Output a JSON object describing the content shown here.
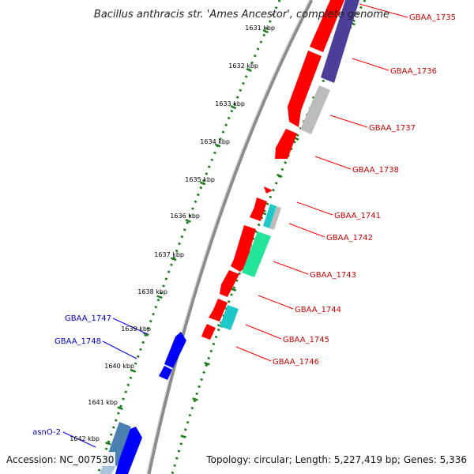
{
  "title": "Bacillus anthracis str. 'Ames Ancestor', complete genome",
  "footer": {
    "accession": "Accession: NC_007530",
    "summary": "Topology: circular; Length: 5,227,419 bp; Genes: 5,336"
  },
  "colors": {
    "backbone": "#8c8c8c",
    "tick_track": "#1e7d1e",
    "forward_cds": "#ff0000",
    "reverse_cds": "#0000ff",
    "forward_label": "#cc0000",
    "reverse_label": "#0000cc",
    "rrna": "#999999",
    "trna_cyan": "#1fc8c8",
    "misc_green": "#22e59a",
    "reverse_purple": "#4b3f9a",
    "reverse_steel": "#4a7fb0"
  },
  "kbp_ticks": [
    "1631 kbp",
    "1632 kbp",
    "1633 kbp",
    "1634 kbp",
    "1635 kbp",
    "1636 kbp",
    "1637 kbp",
    "1638 kbp",
    "1639 kbp",
    "1640 kbp",
    "1641 kbp",
    "1642 kbp"
  ],
  "forward_labels": [
    "GBAA_1735",
    "GBAA_1736",
    "GBAA_1737",
    "GBAA_1738",
    "GBAA_1741",
    "GBAA_1742",
    "GBAA_1743",
    "GBAA_1744",
    "GBAA_1745",
    "GBAA_1746"
  ],
  "reverse_labels": [
    "GBAA_1747",
    "GBAA_1748",
    "asnO-2"
  ]
}
